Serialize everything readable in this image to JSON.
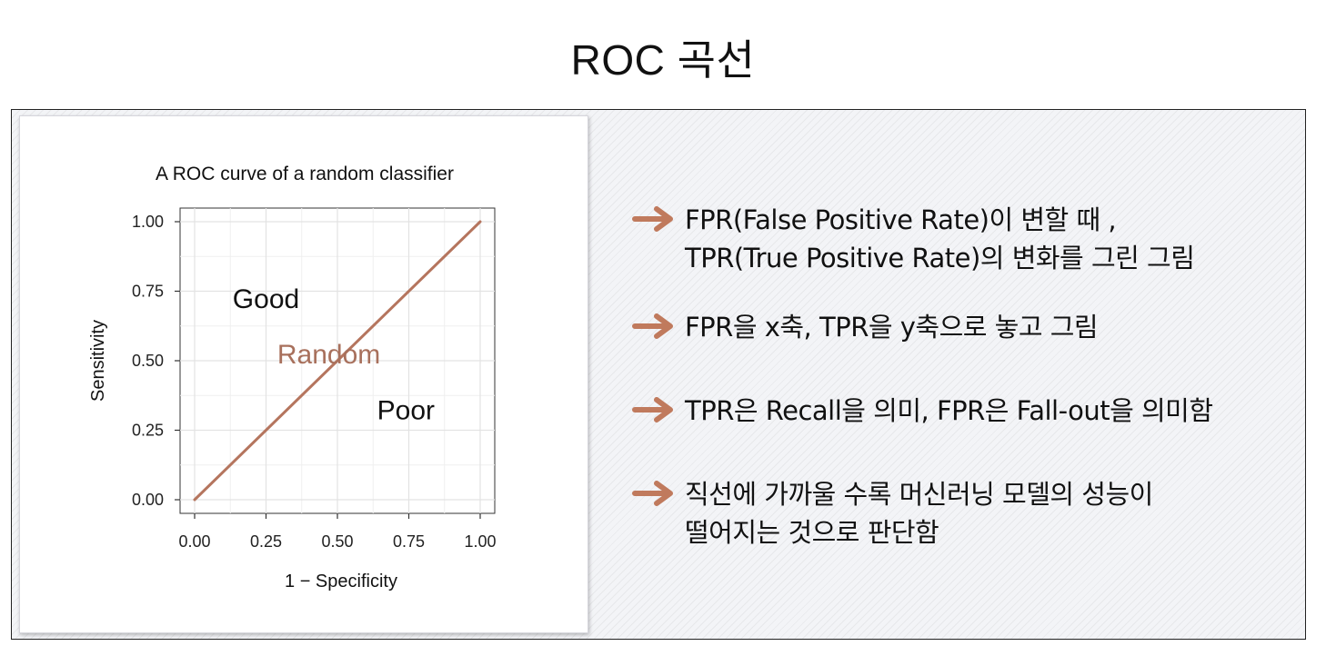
{
  "page": {
    "title": "ROC 곡선"
  },
  "colors": {
    "diagonal": "#b5755e",
    "random_label": "#a8705c",
    "arrow": "#c07a5d",
    "grid": "#e3e3e3"
  },
  "bullets": [
    {
      "lines": [
        "FPR(False Positive Rate)이 변할 때 ,",
        "TPR(True Positive Rate)의 변화를 그린 그림"
      ]
    },
    {
      "lines": [
        "FPR을 x축, TPR을 y축으로 놓고 그림"
      ]
    },
    {
      "lines": [
        "TPR은 Recall을 의미, FPR은 Fall-out을 의미함"
      ]
    },
    {
      "lines": [
        "직선에 가까울 수록 머신러닝 모델의 성능이",
        "떨어지는 것으로 판단함"
      ]
    }
  ],
  "chart_data": {
    "type": "line",
    "title": "A ROC curve of a random classifier",
    "xlabel": "1 − Specificity",
    "ylabel": "Sensitivity",
    "xlim": [
      0,
      1
    ],
    "ylim": [
      0,
      1
    ],
    "x_ticks": [
      "0.00",
      "0.25",
      "0.50",
      "0.75",
      "1.00"
    ],
    "y_ticks": [
      "0.00",
      "0.25",
      "0.50",
      "0.75",
      "1.00"
    ],
    "grid": true,
    "series": [
      {
        "x": [
          0,
          1
        ],
        "y": [
          0,
          1
        ]
      }
    ],
    "annotations": [
      {
        "text": "Good",
        "x": 0.25,
        "y": 0.69
      },
      {
        "text": "Random",
        "x": 0.47,
        "y": 0.49
      },
      {
        "text": "Poor",
        "x": 0.74,
        "y": 0.29
      }
    ]
  }
}
